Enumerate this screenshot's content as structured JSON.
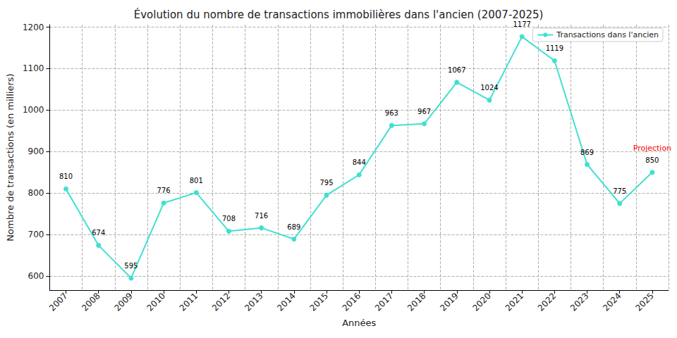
{
  "chart_data": {
    "type": "line",
    "title": "Évolution du nombre de transactions immobilières dans l'ancien (2007-2025)",
    "x_label": "Années",
    "y_label": "Nombre de transactions (en milliers)",
    "categories": [
      "2007",
      "2008",
      "2009",
      "2010",
      "2011",
      "2012",
      "2013",
      "2014",
      "2015",
      "2016",
      "2017",
      "2018",
      "2019",
      "2020",
      "2021",
      "2022",
      "2023",
      "2024",
      "2025"
    ],
    "series": [
      {
        "name": "Transactions dans l'ancien",
        "color": "#40e0d0",
        "marker": "circle",
        "line_style": "solid",
        "values": [
          810,
          674,
          595,
          776,
          801,
          708,
          716,
          689,
          795,
          844,
          963,
          967,
          1067,
          1024,
          1177,
          1119,
          869,
          775,
          850
        ]
      }
    ],
    "ylim": [
      566,
      1206
    ],
    "yticks": [
      600,
      700,
      800,
      900,
      1000,
      1100,
      1200
    ],
    "grid": true,
    "legend": "upper right",
    "data_labels": true,
    "annotations": [
      {
        "text": "Projection",
        "x": "2025",
        "color": "red"
      }
    ]
  }
}
